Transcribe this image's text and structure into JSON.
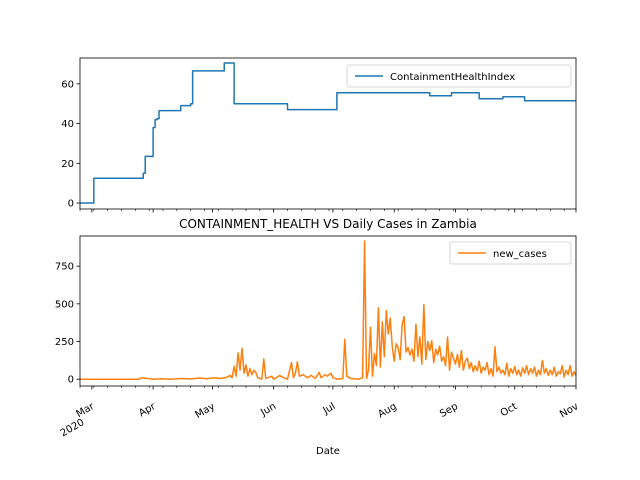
{
  "chart_data": [
    {
      "type": "line",
      "title": "",
      "xlabel": "",
      "ylabel": "",
      "xlim": [
        "2020-02-24",
        "2020-11-01"
      ],
      "ylim": [
        -3,
        73
      ],
      "yticks": [
        0,
        20,
        40,
        60
      ],
      "grid": false,
      "legend_position": "top-right",
      "series": [
        {
          "name": "ContainmentHealthIndex",
          "color": "#1f77b4",
          "step": true,
          "points": [
            [
              "2020-02-24",
              0
            ],
            [
              "2020-03-02",
              12.5
            ],
            [
              "2020-03-27",
              15
            ],
            [
              "2020-03-28",
              23.5
            ],
            [
              "2020-04-01",
              38
            ],
            [
              "2020-04-02",
              42
            ],
            [
              "2020-04-03",
              42.5
            ],
            [
              "2020-04-04",
              46.5
            ],
            [
              "2020-04-15",
              49
            ],
            [
              "2020-04-20",
              50
            ],
            [
              "2020-04-21",
              66.5
            ],
            [
              "2020-05-07",
              70.5
            ],
            [
              "2020-05-12",
              50
            ],
            [
              "2020-06-08",
              47
            ],
            [
              "2020-07-03",
              55.5
            ],
            [
              "2020-08-19",
              54
            ],
            [
              "2020-08-30",
              55.5
            ],
            [
              "2020-09-13",
              52.5
            ],
            [
              "2020-09-25",
              53.5
            ],
            [
              "2020-10-06",
              51.5
            ],
            [
              "2020-11-01",
              51.5
            ]
          ]
        }
      ]
    },
    {
      "type": "line",
      "title": "CONTAINMENT_HEALTH VS Daily Cases in Zambia",
      "xlabel": "Date",
      "ylabel": "",
      "xlim": [
        "2020-02-24",
        "2020-11-01"
      ],
      "ylim": [
        -45,
        950
      ],
      "yticks": [
        0,
        250,
        500,
        750
      ],
      "xticks": [
        {
          "date": "2020-03-01",
          "label": "Mar",
          "sublabel": "2020"
        },
        {
          "date": "2020-04-01",
          "label": "Apr"
        },
        {
          "date": "2020-05-01",
          "label": "May"
        },
        {
          "date": "2020-06-01",
          "label": "Jun"
        },
        {
          "date": "2020-07-01",
          "label": "Jul"
        },
        {
          "date": "2020-08-01",
          "label": "Aug"
        },
        {
          "date": "2020-09-01",
          "label": "Sep"
        },
        {
          "date": "2020-10-01",
          "label": "Oct"
        },
        {
          "date": "2020-11-01",
          "label": "Nov"
        }
      ],
      "grid": false,
      "legend_position": "top-right",
      "series": [
        {
          "name": "new_cases",
          "color": "#ff7f0e",
          "step": false,
          "points": [
            [
              "2020-02-24",
              0
            ],
            [
              "2020-03-25",
              0
            ],
            [
              "2020-03-26",
              10
            ],
            [
              "2020-03-28",
              6
            ],
            [
              "2020-03-30",
              4
            ],
            [
              "2020-04-01",
              0
            ],
            [
              "2020-04-05",
              3
            ],
            [
              "2020-04-10",
              0
            ],
            [
              "2020-04-15",
              5
            ],
            [
              "2020-04-20",
              2
            ],
            [
              "2020-04-25",
              8
            ],
            [
              "2020-04-28",
              3
            ],
            [
              "2020-05-02",
              10
            ],
            [
              "2020-05-05",
              5
            ],
            [
              "2020-05-08",
              12
            ],
            [
              "2020-05-10",
              25
            ],
            [
              "2020-05-11",
              10
            ],
            [
              "2020-05-12",
              85
            ],
            [
              "2020-05-13",
              20
            ],
            [
              "2020-05-14",
              175
            ],
            [
              "2020-05-15",
              60
            ],
            [
              "2020-05-16",
              205
            ],
            [
              "2020-05-17",
              40
            ],
            [
              "2020-05-18",
              95
            ],
            [
              "2020-05-19",
              20
            ],
            [
              "2020-05-20",
              70
            ],
            [
              "2020-05-21",
              30
            ],
            [
              "2020-05-22",
              60
            ],
            [
              "2020-05-23",
              45
            ],
            [
              "2020-05-24",
              10
            ],
            [
              "2020-05-26",
              0
            ],
            [
              "2020-05-27",
              135
            ],
            [
              "2020-05-28",
              5
            ],
            [
              "2020-05-31",
              20
            ],
            [
              "2020-06-01",
              0
            ],
            [
              "2020-06-04",
              25
            ],
            [
              "2020-06-06",
              10
            ],
            [
              "2020-06-08",
              0
            ],
            [
              "2020-06-10",
              110
            ],
            [
              "2020-06-11",
              10
            ],
            [
              "2020-06-12",
              40
            ],
            [
              "2020-06-13",
              115
            ],
            [
              "2020-06-14",
              20
            ],
            [
              "2020-06-16",
              30
            ],
            [
              "2020-06-18",
              10
            ],
            [
              "2020-06-20",
              25
            ],
            [
              "2020-06-22",
              5
            ],
            [
              "2020-06-24",
              45
            ],
            [
              "2020-06-25",
              10
            ],
            [
              "2020-06-27",
              30
            ],
            [
              "2020-06-28",
              20
            ],
            [
              "2020-06-30",
              40
            ],
            [
              "2020-07-01",
              10
            ],
            [
              "2020-07-03",
              0
            ],
            [
              "2020-07-06",
              5
            ],
            [
              "2020-07-07",
              265
            ],
            [
              "2020-07-08",
              20
            ],
            [
              "2020-07-10",
              5
            ],
            [
              "2020-07-14",
              0
            ],
            [
              "2020-07-16",
              10
            ],
            [
              "2020-07-17",
              916
            ],
            [
              "2020-07-18",
              5
            ],
            [
              "2020-07-19",
              60
            ],
            [
              "2020-07-20",
              345
            ],
            [
              "2020-07-21",
              20
            ],
            [
              "2020-07-22",
              170
            ],
            [
              "2020-07-23",
              90
            ],
            [
              "2020-07-24",
              475
            ],
            [
              "2020-07-25",
              80
            ],
            [
              "2020-07-26",
              380
            ],
            [
              "2020-07-27",
              150
            ],
            [
              "2020-07-28",
              455
            ],
            [
              "2020-07-29",
              300
            ],
            [
              "2020-07-30",
              405
            ],
            [
              "2020-07-31",
              220
            ],
            [
              "2020-08-01",
              120
            ],
            [
              "2020-08-02",
              235
            ],
            [
              "2020-08-03",
              210
            ],
            [
              "2020-08-04",
              130
            ],
            [
              "2020-08-05",
              360
            ],
            [
              "2020-08-06",
              415
            ],
            [
              "2020-08-07",
              180
            ],
            [
              "2020-08-08",
              210
            ],
            [
              "2020-08-09",
              160
            ],
            [
              "2020-08-10",
              200
            ],
            [
              "2020-08-11",
              120
            ],
            [
              "2020-08-12",
              365
            ],
            [
              "2020-08-13",
              150
            ],
            [
              "2020-08-14",
              280
            ],
            [
              "2020-08-15",
              100
            ],
            [
              "2020-08-16",
              495
            ],
            [
              "2020-08-17",
              130
            ],
            [
              "2020-08-18",
              250
            ],
            [
              "2020-08-19",
              190
            ],
            [
              "2020-08-20",
              255
            ],
            [
              "2020-08-21",
              110
            ],
            [
              "2020-08-22",
              200
            ],
            [
              "2020-08-23",
              160
            ],
            [
              "2020-08-24",
              220
            ],
            [
              "2020-08-25",
              120
            ],
            [
              "2020-08-26",
              150
            ],
            [
              "2020-08-27",
              90
            ],
            [
              "2020-08-28",
              280
            ],
            [
              "2020-08-29",
              60
            ],
            [
              "2020-08-30",
              180
            ],
            [
              "2020-08-31",
              140
            ],
            [
              "2020-09-01",
              100
            ],
            [
              "2020-09-02",
              165
            ],
            [
              "2020-09-03",
              80
            ],
            [
              "2020-09-04",
              190
            ],
            [
              "2020-09-05",
              60
            ],
            [
              "2020-09-06",
              120
            ],
            [
              "2020-09-07",
              140
            ],
            [
              "2020-09-08",
              70
            ],
            [
              "2020-09-09",
              110
            ],
            [
              "2020-09-10",
              50
            ],
            [
              "2020-09-11",
              90
            ],
            [
              "2020-09-12",
              55
            ],
            [
              "2020-09-13",
              120
            ],
            [
              "2020-09-14",
              40
            ],
            [
              "2020-09-15",
              80
            ],
            [
              "2020-09-16",
              60
            ],
            [
              "2020-09-17",
              110
            ],
            [
              "2020-09-18",
              30
            ],
            [
              "2020-09-19",
              70
            ],
            [
              "2020-09-20",
              20
            ],
            [
              "2020-09-21",
              215
            ],
            [
              "2020-09-22",
              50
            ],
            [
              "2020-09-23",
              80
            ],
            [
              "2020-09-24",
              40
            ],
            [
              "2020-09-25",
              60
            ],
            [
              "2020-09-26",
              30
            ],
            [
              "2020-09-27",
              105
            ],
            [
              "2020-09-28",
              20
            ],
            [
              "2020-09-29",
              70
            ],
            [
              "2020-09-30",
              40
            ],
            [
              "2020-10-01",
              85
            ],
            [
              "2020-10-02",
              30
            ],
            [
              "2020-10-03",
              60
            ],
            [
              "2020-10-04",
              20
            ],
            [
              "2020-10-05",
              75
            ],
            [
              "2020-10-06",
              40
            ],
            [
              "2020-10-07",
              90
            ],
            [
              "2020-10-08",
              30
            ],
            [
              "2020-10-09",
              70
            ],
            [
              "2020-10-10",
              40
            ],
            [
              "2020-10-11",
              80
            ],
            [
              "2020-10-12",
              20
            ],
            [
              "2020-10-13",
              60
            ],
            [
              "2020-10-14",
              30
            ],
            [
              "2020-10-15",
              125
            ],
            [
              "2020-10-16",
              40
            ],
            [
              "2020-10-17",
              70
            ],
            [
              "2020-10-18",
              25
            ],
            [
              "2020-10-19",
              60
            ],
            [
              "2020-10-20",
              30
            ],
            [
              "2020-10-21",
              80
            ],
            [
              "2020-10-22",
              20
            ],
            [
              "2020-10-23",
              50
            ],
            [
              "2020-10-24",
              35
            ],
            [
              "2020-10-25",
              90
            ],
            [
              "2020-10-26",
              15
            ],
            [
              "2020-10-27",
              60
            ],
            [
              "2020-10-28",
              30
            ],
            [
              "2020-10-29",
              90
            ],
            [
              "2020-10-30",
              20
            ],
            [
              "2020-10-31",
              50
            ],
            [
              "2020-11-01",
              25
            ]
          ]
        }
      ]
    }
  ]
}
